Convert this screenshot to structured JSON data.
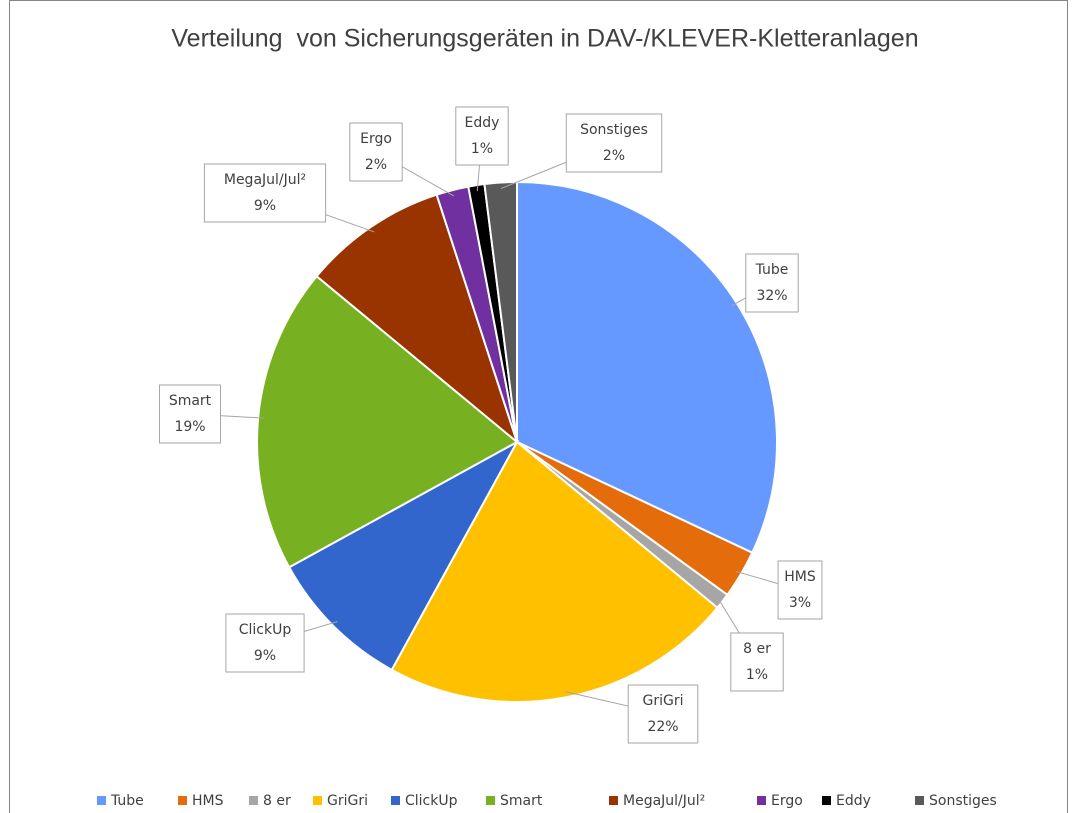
{
  "chart_data": {
    "type": "pie",
    "title": "Verteilung  von Sicherungsgeräten in DAV-/KLEVER-Kletteranlagen",
    "categories": [
      "Tube",
      "HMS",
      "8 er",
      "GriGri",
      "ClickUp",
      "Smart",
      "MegaJul/Jul²",
      "Ergo",
      "Eddy",
      "Sonstiges"
    ],
    "values": [
      32,
      3,
      1,
      22,
      9,
      19,
      9,
      2,
      1,
      2
    ],
    "value_labels": [
      "32%",
      "3%",
      "1%",
      "22%",
      "9%",
      "19%",
      "9%",
      "2%",
      "1%",
      "2%"
    ],
    "colors": [
      "#6699ff",
      "#e46c0a",
      "#a6a6a6",
      "#ffc000",
      "#3366cc",
      "#77b021",
      "#993300",
      "#7030a0",
      "#000000",
      "#595959"
    ],
    "legend": "bottom"
  }
}
